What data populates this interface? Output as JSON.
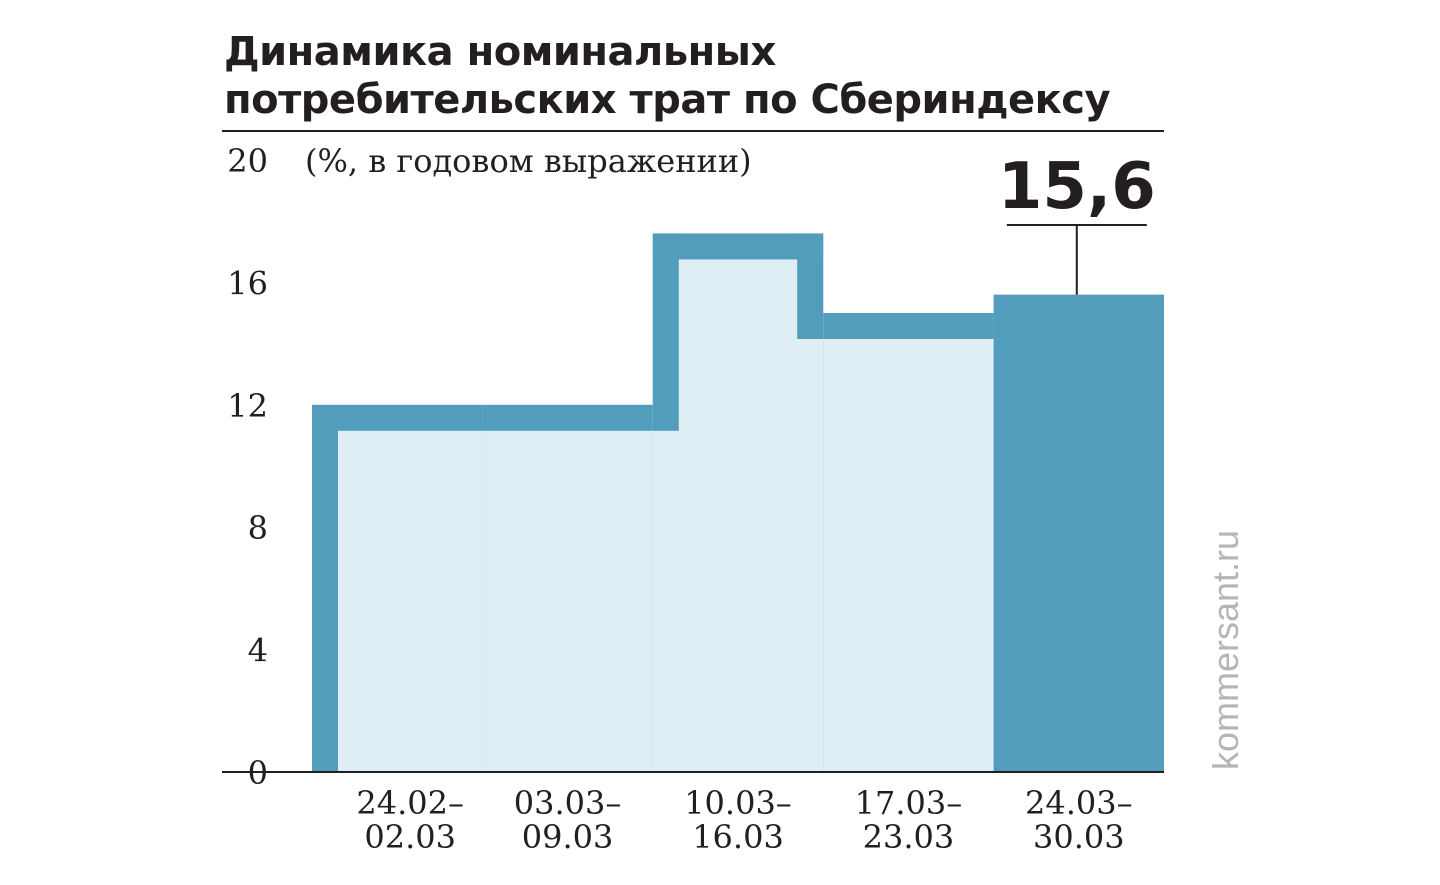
{
  "title_lines": [
    "Динамика номинальных",
    "потребительских трат по Сбериндексу"
  ],
  "unit_label": "(%, в годовом выражении)",
  "credit": "kommersant.ru",
  "colors": {
    "bar_fill": "#dfedf4",
    "bar_outline": "#529cbc",
    "highlight_bar": "#529cbc",
    "text": "#231f20",
    "credit": "#b5b5b5"
  },
  "chart_data": {
    "type": "bar",
    "title": "Динамика номинальных потребительских трат по Сбериндексу",
    "ylabel": "(%, в годовом выражении)",
    "ylim": [
      0,
      20
    ],
    "yticks": [
      0,
      4,
      8,
      12,
      16,
      20
    ],
    "categories": [
      [
        "24.02–",
        "02.03"
      ],
      [
        "03.03–",
        "09.03"
      ],
      [
        "10.03–",
        "16.03"
      ],
      [
        "17.03–",
        "23.03"
      ],
      [
        "24.03–",
        "30.03"
      ]
    ],
    "values": [
      12.0,
      12.0,
      17.6,
      15.0,
      15.6
    ],
    "highlight_index": 4,
    "highlight_label": "15,6",
    "grid": false,
    "legend": "none"
  }
}
